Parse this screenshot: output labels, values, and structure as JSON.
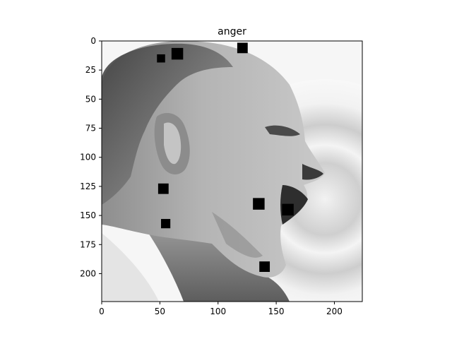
{
  "figure": {
    "title": "anger",
    "x_axis": {
      "range": [
        0,
        224
      ],
      "ticks": [
        0,
        50,
        100,
        150,
        200
      ]
    },
    "y_axis": {
      "range": [
        0,
        224
      ],
      "inverted": true,
      "ticks": [
        0,
        25,
        50,
        75,
        100,
        125,
        150,
        175,
        200
      ]
    },
    "image": {
      "subject": "grayscale side-profile photo of a bald man shouting with open mouth",
      "colormap": "gray"
    },
    "occlusion_patches": [
      {
        "x": 51,
        "y": 15,
        "size": 7
      },
      {
        "x": 65,
        "y": 11,
        "size": 10
      },
      {
        "x": 121,
        "y": 6,
        "size": 9
      },
      {
        "x": 53,
        "y": 127,
        "size": 9
      },
      {
        "x": 55,
        "y": 157,
        "size": 8
      },
      {
        "x": 135,
        "y": 140,
        "size": 10
      },
      {
        "x": 160,
        "y": 145,
        "size": 10
      },
      {
        "x": 140,
        "y": 194,
        "size": 9
      }
    ]
  }
}
